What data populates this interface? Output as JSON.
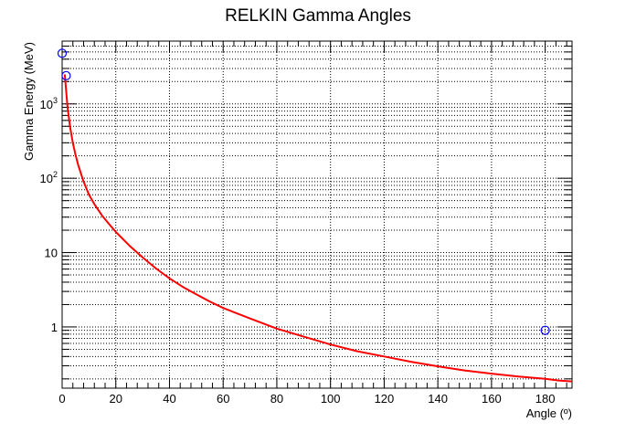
{
  "chart_data": {
    "type": "scatter",
    "title": "RELKIN Gamma Angles",
    "xlabel": "Angle (º)",
    "ylabel": "Gamma Energy (MeV)",
    "xlim": [
      0,
      190
    ],
    "ylim": [
      0.15,
      7000
    ],
    "yscale": "log",
    "grid": true,
    "x_ticks": [
      0,
      20,
      40,
      60,
      80,
      100,
      120,
      140,
      160,
      180
    ],
    "x_tick_labels": [
      "0",
      "20",
      "40",
      "60",
      "80",
      "100",
      "120",
      "140",
      "160",
      "180"
    ],
    "y_ticks": [
      1,
      10,
      100,
      1000
    ],
    "y_tick_labels": [
      {
        "base": "1",
        "exp": ""
      },
      {
        "base": "10",
        "exp": ""
      },
      {
        "base": "10",
        "exp": "2"
      },
      {
        "base": "10",
        "exp": "3"
      }
    ],
    "series": [
      {
        "kind": "line",
        "color": "#ff0000",
        "x": [
          1,
          2,
          3,
          4,
          5,
          6,
          8,
          10,
          12,
          15,
          18,
          20,
          25,
          30,
          35,
          40,
          45,
          50,
          55,
          60,
          70,
          80,
          90,
          100,
          110,
          120,
          130,
          140,
          150,
          160,
          170,
          180,
          185,
          190
        ],
        "y": [
          2500,
          900,
          480,
          300,
          205,
          150,
          90,
          60,
          45,
          31,
          23,
          19,
          12.5,
          8.6,
          6.1,
          4.5,
          3.45,
          2.75,
          2.2,
          1.8,
          1.3,
          0.95,
          0.74,
          0.58,
          0.47,
          0.4,
          0.34,
          0.295,
          0.26,
          0.235,
          0.215,
          0.2,
          0.19,
          0.185
        ]
      },
      {
        "kind": "markers",
        "marker": "open-circle",
        "color": "#0000ff",
        "x": [
          0,
          1.5,
          180
        ],
        "y": [
          4800,
          2400,
          0.9
        ]
      }
    ]
  }
}
